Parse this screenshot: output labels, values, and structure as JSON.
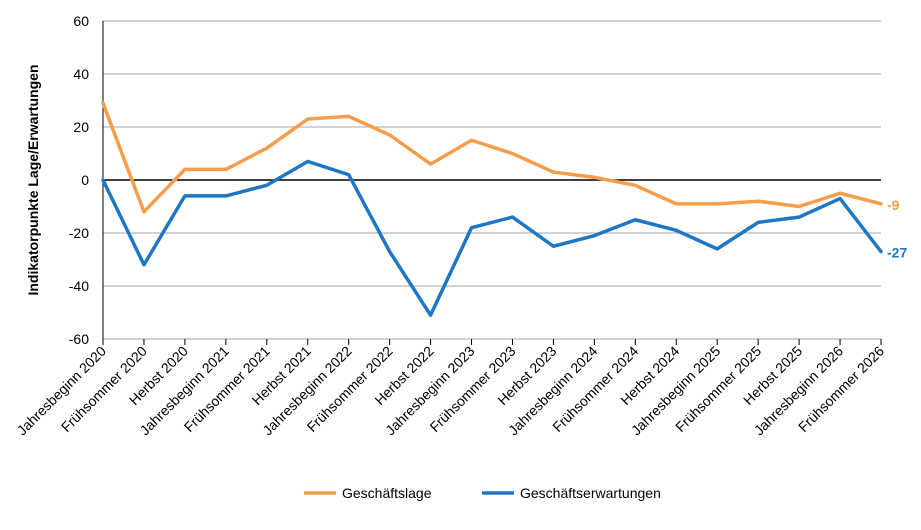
{
  "chart_data": {
    "type": "line",
    "ylabel": "Indikatorpunkte Lage/Erwartungen",
    "ylim": [
      -60,
      60
    ],
    "yticks": [
      -60,
      -40,
      -20,
      0,
      20,
      40,
      60
    ],
    "grid": true,
    "legend_position": "bottom",
    "categories": [
      "Jahresbeginn 2020",
      "Frühsommer 2020",
      "Herbst 2020",
      "Jahresbeginn 2021",
      "Frühsommer 2021",
      "Herbst 2021",
      "Jahresbeginn 2022",
      "Frühsommer 2022",
      "Herbst 2022",
      "Jahresbeginn 2023",
      "Frühsommer 2023",
      "Herbst 2023",
      "Jahresbeginn 2024",
      "Frühsommer 2024",
      "Herbst 2024",
      "Jahresbeginn 2025",
      "Frühsommer 2025",
      "Herbst 2025",
      "Jahresbeginn 2026",
      "Frühsommer 2026"
    ],
    "series": [
      {
        "name": "Geschäftslage",
        "color": "#F59D4A",
        "end_label": "-9",
        "values": [
          29,
          -12,
          4,
          4,
          12,
          23,
          24,
          17,
          6,
          15,
          10,
          3,
          1,
          -2,
          -9,
          -9,
          -8,
          -10,
          -5,
          -9
        ]
      },
      {
        "name": "Geschäftserwartungen",
        "color": "#1F77C4",
        "end_label": "-27",
        "values": [
          0,
          -32,
          -6,
          -6,
          -2,
          7,
          2,
          -27,
          -51,
          -18,
          -14,
          -25,
          -21,
          -15,
          -19,
          -26,
          -16,
          -14,
          -7,
          -27
        ]
      }
    ]
  }
}
